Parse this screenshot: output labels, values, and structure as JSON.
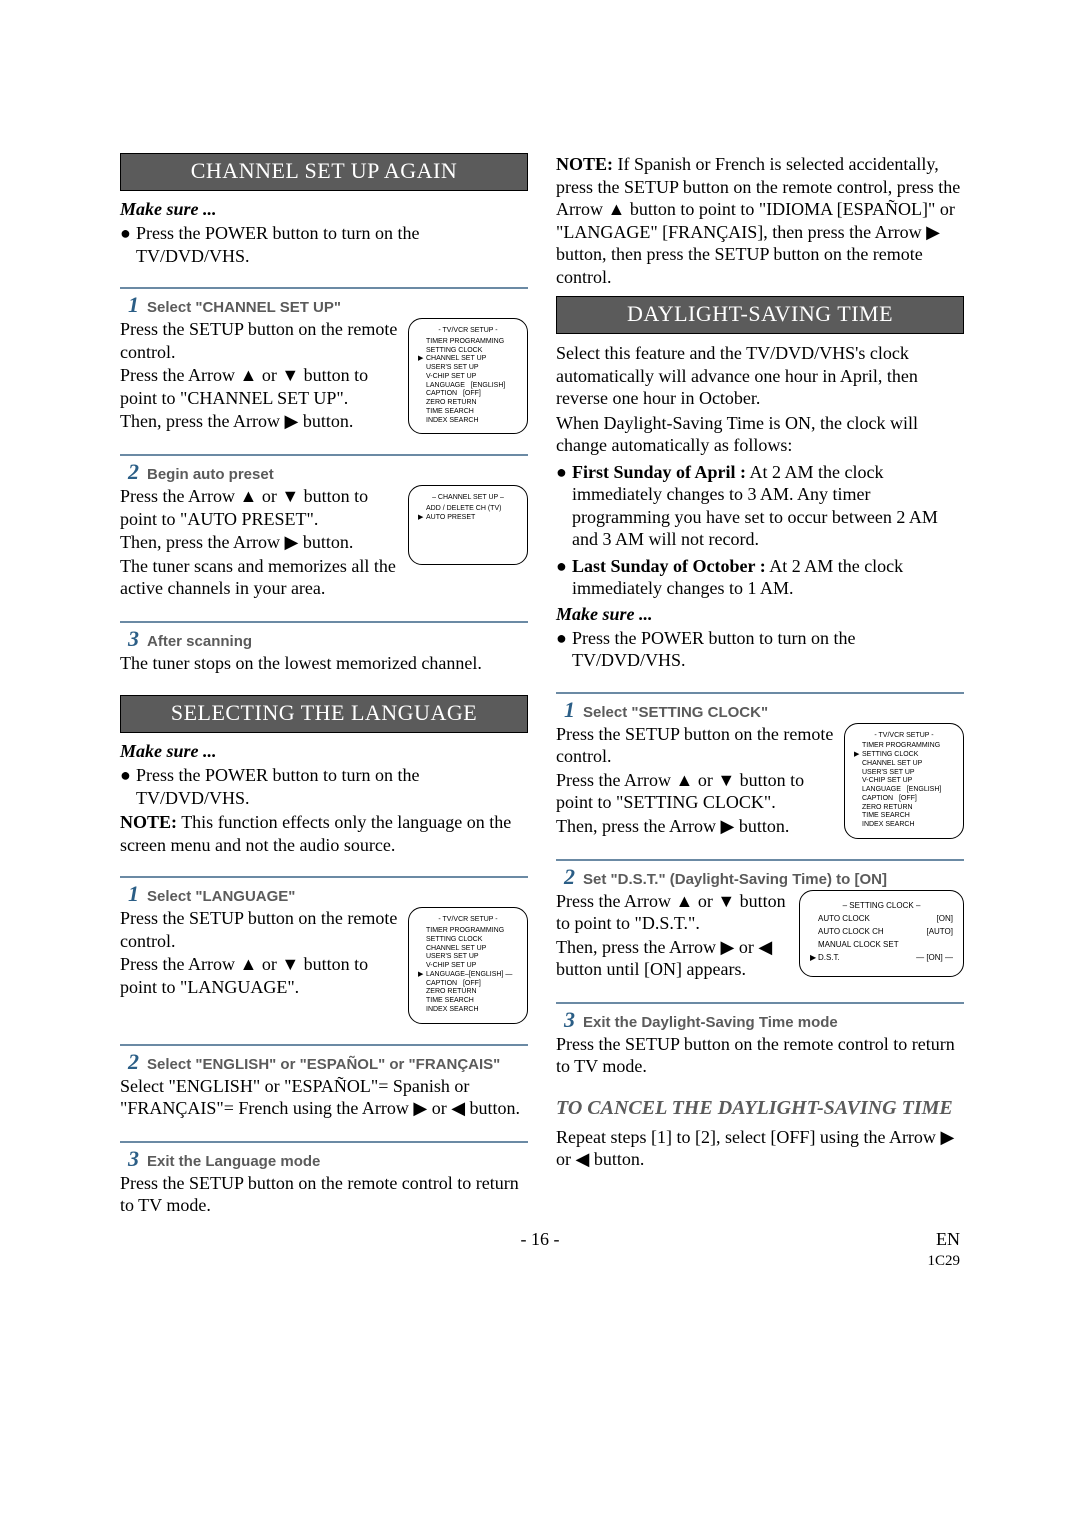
{
  "footer": {
    "page": "- 16 -",
    "en": "EN",
    "code": "1C29"
  },
  "arrows": {
    "up": "▲",
    "down": "▼",
    "right": "▶",
    "left": "◀"
  },
  "left": {
    "sec1": {
      "banner": "CHANNEL SET UP AGAIN",
      "makesure": "Make sure ...",
      "ms1": "Press the POWER button to turn on the TV/DVD/VHS.",
      "s1": {
        "num": "1",
        "title": "Select \"CHANNEL SET UP\"",
        "p1": "Press the SETUP button on the remote control.",
        "p2a": "Press the Arrow ",
        "p2b": " or ",
        "p2c": " button to point to \"CHANNEL SET UP\".",
        "p3a": "Then, press the Arrow ",
        "p3b": " button."
      },
      "s2": {
        "num": "2",
        "title": "Begin auto preset",
        "p1a": "Press the Arrow ",
        "p1b": " or ",
        "p1c": " button to point to \"AUTO PRESET\".",
        "p2a": "Then, press the Arrow ",
        "p2b": " button.",
        "p3": "The tuner scans and memorizes all the active channels in your area."
      },
      "s3": {
        "num": "3",
        "title": "After scanning",
        "p1": "The tuner stops on the lowest memorized channel."
      }
    },
    "sec2": {
      "banner": "SELECTING THE LANGUAGE",
      "makesure": "Make sure ...",
      "ms1": "Press the POWER button to turn on the TV/DVD/VHS.",
      "noteLabel": "NOTE:",
      "note": " This function effects only the language on the screen menu and not the audio source.",
      "s1": {
        "num": "1",
        "title": "Select \"LANGUAGE\"",
        "p1": "Press the SETUP button on the remote control.",
        "p2a": "Press the Arrow ",
        "p2b": " or ",
        "p2c": " button to point to \"LANGUAGE\"."
      },
      "s2": {
        "num": "2",
        "title": "Select \"ENGLISH\" or \"ESPAÑOL\" or \"FRANÇAIS\"",
        "p1a": "Select \"ENGLISH\" or \"ESPAÑOL\"= Spanish or \"FRANÇAIS\"= French using the Arrow ",
        "p1b": " or ",
        "p1c": " button."
      },
      "s3": {
        "num": "3",
        "title": "Exit the Language mode",
        "p1": "Press the SETUP button on the remote control to return to TV mode."
      }
    }
  },
  "right": {
    "intro": {
      "noteLabel": "NOTE:",
      "note1": " If Spanish or French is selected accidentally, press the SETUP button on the remote control, press the Arrow ",
      "note2": " button to point to \"IDIOMA [ESPAÑOL]\" or \"LANGAGE\" [FRANÇAIS], then press the Arrow ",
      "note3": " button, then press the SETUP button on the remote control."
    },
    "sec1": {
      "banner": "DAYLIGHT-SAVING TIME",
      "p1": "Select this feature and the TV/DVD/VHS's clock automatically will advance one hour in April, then reverse one hour in October.",
      "p2": "When Daylight-Saving Time is ON, the clock will change automatically as follows:",
      "b1lead": "First Sunday of April :",
      "b1": " At 2 AM the clock immediately changes to 3 AM. Any timer programming you have set to occur between 2 AM and 3 AM will not record.",
      "b2lead": "Last Sunday of October :",
      "b2": " At 2 AM the clock immediately changes to 1 AM.",
      "makesure": "Make sure ...",
      "ms1": "Press the POWER button to turn on the TV/DVD/VHS.",
      "s1": {
        "num": "1",
        "title": "Select \"SETTING CLOCK\"",
        "p1": "Press the SETUP button on the remote control.",
        "p2a": "Press the Arrow ",
        "p2b": " or ",
        "p2c": " button to point to \"SETTING CLOCK\".",
        "p3a": "Then, press the Arrow ",
        "p3b": " button."
      },
      "s2": {
        "num": "2",
        "title": "Set \"D.S.T.\" (Daylight-Saving Time) to [ON]",
        "p1a": "Press the Arrow ",
        "p1b": " or ",
        "p1c": " button to point to \"D.S.T.\".",
        "p2a": "Then, press the Arrow ",
        "p2b": " or ",
        "p2c": " button until [ON] appears."
      },
      "s3": {
        "num": "3",
        "title": "Exit the Daylight-Saving Time mode",
        "p1": "Press the SETUP button on the remote control to return to TV mode."
      },
      "cancelHead": "TO CANCEL THE DAYLIGHT-SAVING TIME",
      "cancelP_a": "Repeat steps [1] to [2], select [OFF] using the Arrow ",
      "cancelP_b": " or ",
      "cancelP_c": " button."
    }
  },
  "osd": {
    "setup1": {
      "title": "- TV/VCR SETUP -",
      "lines": [
        {
          "ptr": "",
          "lbl": "TIMER PROGRAMMING"
        },
        {
          "ptr": "",
          "lbl": "SETTING CLOCK"
        },
        {
          "ptr": "▶",
          "lbl": "CHANNEL SET UP"
        },
        {
          "ptr": "",
          "lbl": "USER'S SET UP"
        },
        {
          "ptr": "",
          "lbl": "V-CHIP SET UP"
        },
        {
          "ptr": "",
          "lbl": "LANGUAGE   [ENGLISH]"
        },
        {
          "ptr": "",
          "lbl": "CAPTION   [OFF]"
        },
        {
          "ptr": "",
          "lbl": "ZERO RETURN"
        },
        {
          "ptr": "",
          "lbl": "TIME SEARCH"
        },
        {
          "ptr": "",
          "lbl": "INDEX SEARCH"
        }
      ]
    },
    "chsetup": {
      "title": "– CHANNEL SET UP –",
      "lines": [
        {
          "ptr": "",
          "lbl": "ADD / DELETE CH (TV)"
        },
        {
          "ptr": "▶",
          "lbl": "AUTO PRESET"
        }
      ]
    },
    "lang": {
      "title": "- TV/VCR SETUP -",
      "lines": [
        {
          "ptr": "",
          "lbl": "TIMER PROGRAMMING"
        },
        {
          "ptr": "",
          "lbl": "SETTING CLOCK"
        },
        {
          "ptr": "",
          "lbl": "CHANNEL SET UP"
        },
        {
          "ptr": "",
          "lbl": "USER'S SET UP"
        },
        {
          "ptr": "",
          "lbl": "V-CHIP SET UP"
        },
        {
          "ptr": "▶",
          "lbl": "LANGUAGE–[ENGLISH] —"
        },
        {
          "ptr": "",
          "lbl": "CAPTION   [OFF]"
        },
        {
          "ptr": "",
          "lbl": "ZERO RETURN"
        },
        {
          "ptr": "",
          "lbl": "TIME SEARCH"
        },
        {
          "ptr": "",
          "lbl": "INDEX SEARCH"
        }
      ]
    },
    "setclock": {
      "title": "- TV/VCR SETUP -",
      "lines": [
        {
          "ptr": "",
          "lbl": "TIMER PROGRAMMING"
        },
        {
          "ptr": "▶",
          "lbl": "SETTING CLOCK"
        },
        {
          "ptr": "",
          "lbl": "CHANNEL SET UP"
        },
        {
          "ptr": "",
          "lbl": "USER'S SET UP"
        },
        {
          "ptr": "",
          "lbl": "V-CHIP SET UP"
        },
        {
          "ptr": "",
          "lbl": "LANGUAGE   [ENGLISH]"
        },
        {
          "ptr": "",
          "lbl": "CAPTION   [OFF]"
        },
        {
          "ptr": "",
          "lbl": "ZERO RETURN"
        },
        {
          "ptr": "",
          "lbl": "TIME SEARCH"
        },
        {
          "ptr": "",
          "lbl": "INDEX SEARCH"
        }
      ]
    },
    "dst": {
      "title": "– SETTING CLOCK –",
      "rows": [
        {
          "ptr": "",
          "lbl": "AUTO CLOCK",
          "val": "[ON]"
        },
        {
          "ptr": "",
          "lbl": "AUTO CLOCK CH",
          "val": "[AUTO]"
        },
        {
          "ptr": "",
          "lbl": "MANUAL CLOCK SET",
          "val": ""
        },
        {
          "ptr": "▶",
          "lbl": "D.S.T.",
          "val": "— [ON] —"
        }
      ]
    }
  }
}
